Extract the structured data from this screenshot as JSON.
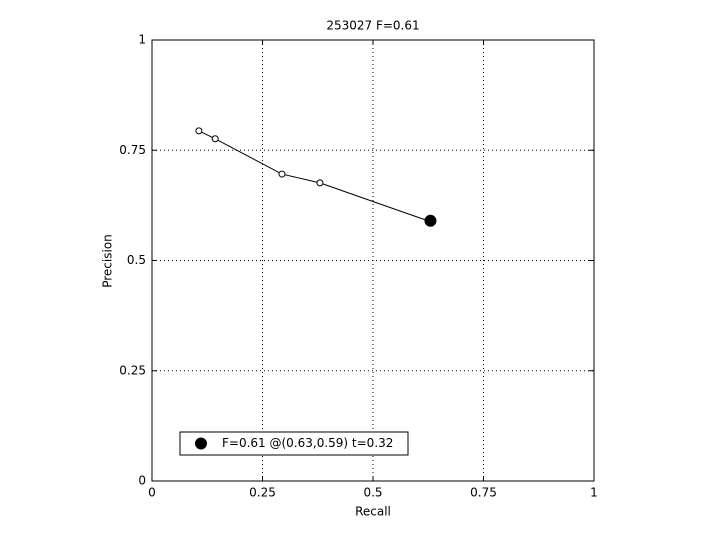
{
  "chart_data": {
    "type": "line",
    "title": "253027 F=0.61",
    "x_label": "Recall",
    "y_label": "Precision",
    "series": [
      {
        "color": "#000000",
        "marker": "open-circle",
        "x": [
          0.106,
          0.143,
          0.294,
          0.38,
          0.633
        ],
        "values": [
          0.794,
          0.776,
          0.696,
          0.676,
          0.587
        ]
      },
      {
        "name": "F=0.61 @(0.63,0.59) t=0.32",
        "color": "#000000",
        "marker": "filled-circle",
        "x": [
          0.63
        ],
        "values": [
          0.59
        ]
      }
    ],
    "xlim": [
      0,
      1
    ],
    "ylim": [
      0,
      1
    ],
    "xticks": [
      0,
      0.25,
      0.5,
      0.75,
      1
    ],
    "yticks": [
      0,
      0.25,
      0.5,
      0.75,
      1
    ],
    "grid": true,
    "legend_position": "lower-left"
  }
}
